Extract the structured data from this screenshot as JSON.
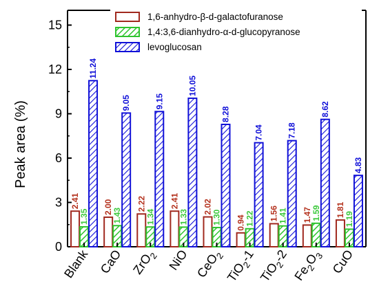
{
  "chart_data": {
    "type": "bar",
    "title": "",
    "xlabel": "",
    "ylabel": "Peak area (%)",
    "ylim": [
      0,
      16
    ],
    "yticks": [
      "0",
      "3",
      "6",
      "9",
      "12",
      "15"
    ],
    "ytick_values": [
      0,
      3,
      6,
      9,
      12,
      15
    ],
    "grid": false,
    "legend_position": "top-right",
    "categories": [
      {
        "base": "Blank"
      },
      {
        "base": "CaO"
      },
      {
        "base": "ZrO",
        "sub": "2"
      },
      {
        "base": "NiO"
      },
      {
        "base": "CeO",
        "sub": "2"
      },
      {
        "base": "TiO",
        "sub": "2",
        "suffix": "-1"
      },
      {
        "base": "TiO",
        "sub": "2",
        "suffix": "-2"
      },
      {
        "base": "Fe",
        "sub": "2",
        "mid": "O",
        "sub2": "3"
      },
      {
        "base": "CuO"
      }
    ],
    "series": [
      {
        "name": "1,6-anhydro-β-d-galactofuranose",
        "color": "#a0281e",
        "pattern": "none",
        "values": [
          2.41,
          2.0,
          2.22,
          2.41,
          2.02,
          0.94,
          1.56,
          1.47,
          1.81
        ],
        "labels": [
          "2.41",
          "2.00",
          "2.22",
          "2.41",
          "2.02",
          "0.94",
          "1.56",
          "1.47",
          "1.81"
        ]
      },
      {
        "name": "1,4:3,6-dianhydro-α-d-glucopyranose",
        "color": "#2ec42e",
        "pattern": "hatch",
        "values": [
          1.35,
          1.43,
          1.34,
          1.33,
          1.3,
          1.22,
          1.41,
          1.59,
          1.19
        ],
        "labels": [
          "1.35",
          "1.43",
          "1.34",
          "1.33",
          "1.30",
          "1.22",
          "1.41",
          "1.59",
          "1.19"
        ]
      },
      {
        "name": "levoglucosan",
        "color": "#1010d8",
        "pattern": "hatch",
        "values": [
          11.24,
          9.05,
          9.15,
          10.05,
          8.28,
          7.04,
          7.18,
          8.62,
          4.83
        ],
        "labels": [
          "11.24",
          "9.05",
          "9.15",
          "10.05",
          "8.28",
          "7.04",
          "7.18",
          "8.62",
          "4.83"
        ]
      }
    ]
  }
}
